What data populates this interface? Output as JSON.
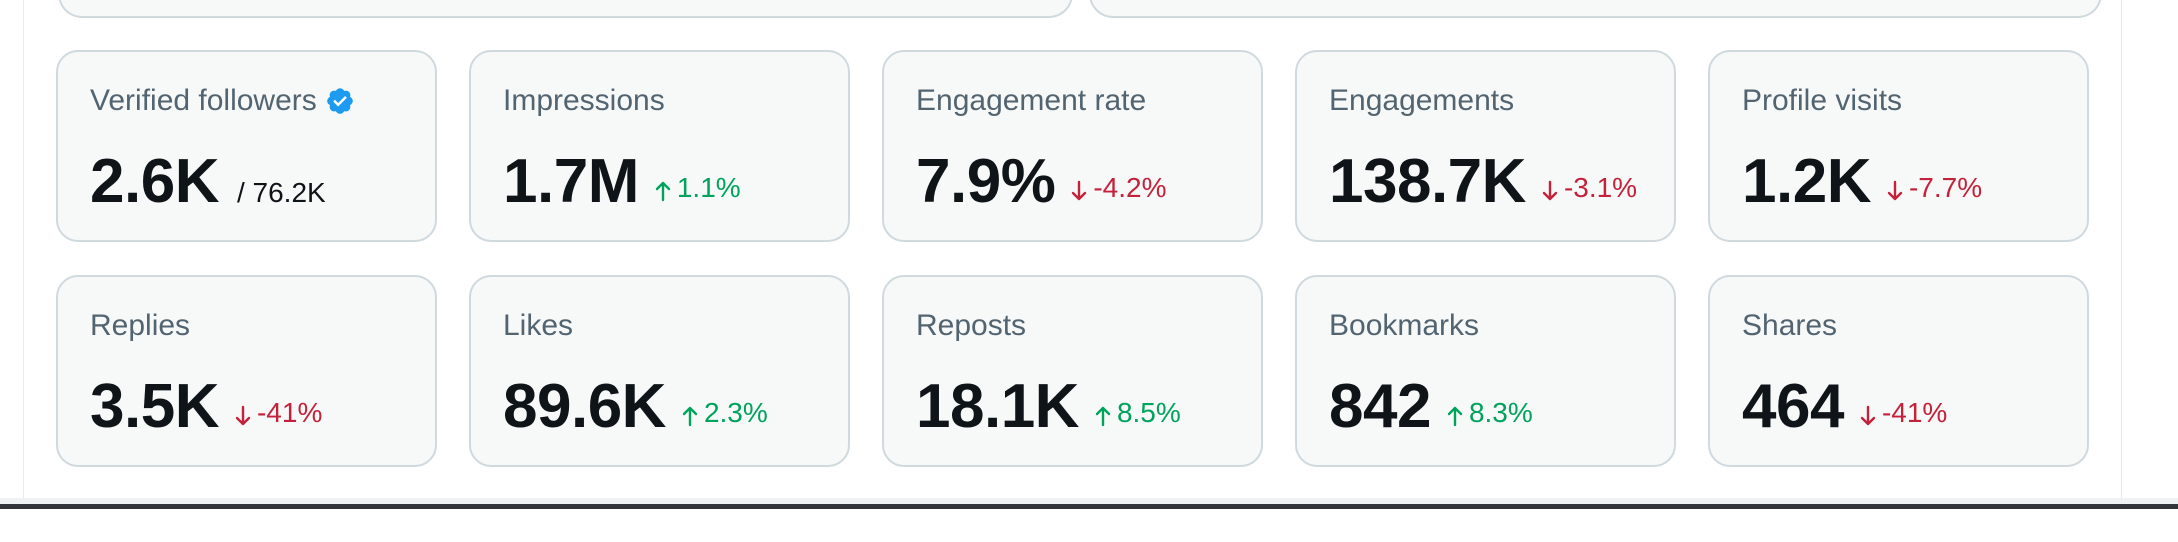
{
  "metrics": [
    {
      "id": "verified-followers",
      "label": "Verified followers",
      "value": "2.6K",
      "sub": "/ 76.2K",
      "verified": true
    },
    {
      "id": "impressions",
      "label": "Impressions",
      "value": "1.7M",
      "change": "1.1%",
      "dir": "up"
    },
    {
      "id": "engagement-rate",
      "label": "Engagement rate",
      "value": "7.9%",
      "change": "-4.2%",
      "dir": "down"
    },
    {
      "id": "engagements",
      "label": "Engagements",
      "value": "138.7K",
      "change": "-3.1%",
      "dir": "down"
    },
    {
      "id": "profile-visits",
      "label": "Profile visits",
      "value": "1.2K",
      "change": "-7.7%",
      "dir": "down"
    },
    {
      "id": "replies",
      "label": "Replies",
      "value": "3.5K",
      "change": "-41%",
      "dir": "down"
    },
    {
      "id": "likes",
      "label": "Likes",
      "value": "89.6K",
      "change": "2.3%",
      "dir": "up"
    },
    {
      "id": "reposts",
      "label": "Reposts",
      "value": "18.1K",
      "change": "8.5%",
      "dir": "up"
    },
    {
      "id": "bookmarks",
      "label": "Bookmarks",
      "value": "842",
      "change": "8.3%",
      "dir": "up"
    },
    {
      "id": "shares",
      "label": "Shares",
      "value": "464",
      "change": "-41%",
      "dir": "down"
    }
  ],
  "colors": {
    "up": "#00a35c",
    "down": "#c4213a",
    "verified": "#1d9bf0"
  },
  "icons": {
    "verified": "verified-badge-icon",
    "up": "arrow-up-icon",
    "down": "arrow-down-icon"
  }
}
